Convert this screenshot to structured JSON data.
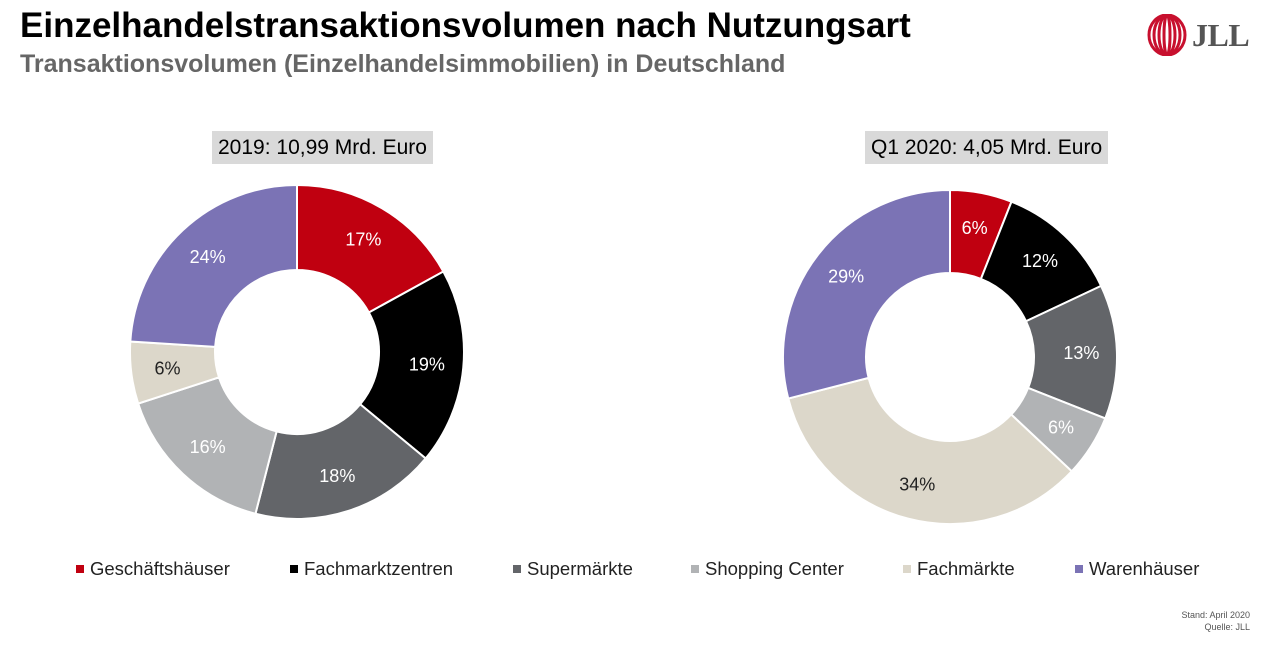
{
  "title": "Einzelhandelstransaktionsvolumen nach Nutzungsart",
  "subtitle": "Transaktionsvolumen (Einzelhandelsimmobilien) in Deutschland",
  "logo": {
    "text": "JLL",
    "color": "#c8102e"
  },
  "colors": {
    "Geschäftshäuser": "#c00010",
    "Fachmarktzentren": "#000000",
    "Supermärkte": "#636569",
    "Shopping Center": "#b1b3b5",
    "Fachmärkte": "#dcd7ca",
    "Warenhäuser": "#7b73b5"
  },
  "label_colors": {
    "Geschäftshäuser": "#ffffff",
    "Fachmarktzentren": "#ffffff",
    "Supermärkte": "#ffffff",
    "Shopping Center": "#ffffff",
    "Fachmärkte": "#222222",
    "Warenhäuser": "#ffffff"
  },
  "chart_data": [
    {
      "type": "pie",
      "title": "2019: 10,99 Mrd. Euro",
      "categories": [
        "Geschäftshäuser",
        "Fachmarktzentren",
        "Supermärkte",
        "Shopping Center",
        "Fachmärkte",
        "Warenhäuser"
      ],
      "values": [
        17,
        19,
        18,
        16,
        6,
        24
      ],
      "labels": [
        "17%",
        "19%",
        "18%",
        "16%",
        "6%",
        "24%"
      ]
    },
    {
      "type": "pie",
      "title": "Q1 2020: 4,05 Mrd. Euro",
      "categories": [
        "Geschäftshäuser",
        "Fachmarktzentren",
        "Supermärkte",
        "Shopping Center",
        "Fachmärkte",
        "Warenhäuser"
      ],
      "values": [
        6,
        12,
        13,
        6,
        34,
        29
      ],
      "labels": [
        "6%",
        "12%",
        "13%",
        "6%",
        "34%",
        "29%"
      ]
    }
  ],
  "legend": [
    "Geschäftshäuser",
    "Fachmarktzentren",
    "Supermärkte",
    "Shopping Center",
    "Fachmärkte",
    "Warenhäuser"
  ],
  "footer": {
    "stand": "Stand: April 2020",
    "quelle": "Quelle: JLL"
  }
}
